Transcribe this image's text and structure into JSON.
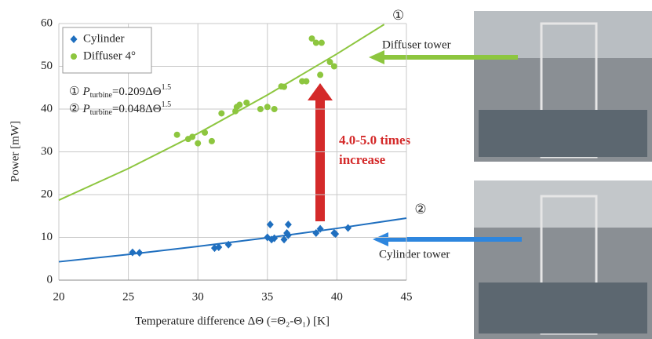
{
  "chart_data": {
    "type": "scatter",
    "xlabel": "Temperature difference ΔΘ (=Θ₂-Θ₁) [K]",
    "ylabel": "Power [mW]",
    "xlim": [
      20,
      45
    ],
    "xticks": [
      20,
      25,
      30,
      35,
      40,
      45
    ],
    "ylim": [
      0,
      60
    ],
    "yticks": [
      0,
      10,
      20,
      30,
      40,
      50,
      60
    ],
    "grid": true,
    "legend": "upper left",
    "series": [
      {
        "name": "Cylinder",
        "color": "#1f6fbf",
        "marker": "diamond",
        "x": [
          25.3,
          25.8,
          31.2,
          31.5,
          32.2,
          35,
          35.2,
          35.3,
          35.5,
          36.2,
          36.4,
          36.5,
          36.5,
          38.5,
          38.8,
          39.8,
          39.9,
          40.8
        ],
        "values": [
          6.5,
          6.4,
          7.5,
          7.7,
          8.3,
          10,
          13,
          9.5,
          9.8,
          9.5,
          11,
          13,
          10.5,
          11,
          12,
          11,
          10.8,
          12.2
        ]
      },
      {
        "name": "Diffuser 4°",
        "color": "#8dc63f",
        "marker": "circle",
        "x": [
          28.5,
          29.3,
          29.6,
          30,
          30.5,
          31,
          31.7,
          32.7,
          32.8,
          33,
          33.5,
          34.5,
          35,
          35.5,
          36,
          36.2,
          37.5,
          37.8,
          38.2,
          38.5,
          38.9,
          38.8,
          39.5,
          39.8
        ],
        "values": [
          34,
          33,
          33.5,
          32,
          34.5,
          32.5,
          39,
          39.5,
          40.5,
          41,
          41.5,
          40,
          40.5,
          40,
          45.3,
          45.2,
          46.5,
          46.5,
          56.5,
          55.5,
          55.5,
          48,
          51,
          50
        ]
      },
      {
        "name": "①",
        "color": "#8dc63f",
        "marker": "none",
        "x": [
          20,
          25,
          30,
          35,
          40,
          43.4
        ],
        "values": [
          18.7,
          26.1,
          34.3,
          43.3,
          52.9,
          59.8
        ]
      },
      {
        "name": "②",
        "color": "#1f6fbf",
        "marker": "none",
        "x": [
          20,
          25,
          30,
          35,
          40,
          45
        ],
        "values": [
          4.3,
          6.0,
          7.9,
          9.9,
          12.1,
          14.5
        ]
      }
    ],
    "formulas": [
      {
        "label": "①",
        "symbol": "P",
        "subscript": "turbine",
        "expression": "=0.209ΔΘ",
        "exponent": "1.5"
      },
      {
        "label": "②",
        "symbol": "P",
        "subscript": "turbine",
        "expression": "=0.048ΔΘ",
        "exponent": "1.5"
      }
    ],
    "annotation": [
      "4.0-5.0 times",
      "increase"
    ],
    "photo_labels": [
      "Diffuser tower",
      "Cylinder tower"
    ]
  }
}
